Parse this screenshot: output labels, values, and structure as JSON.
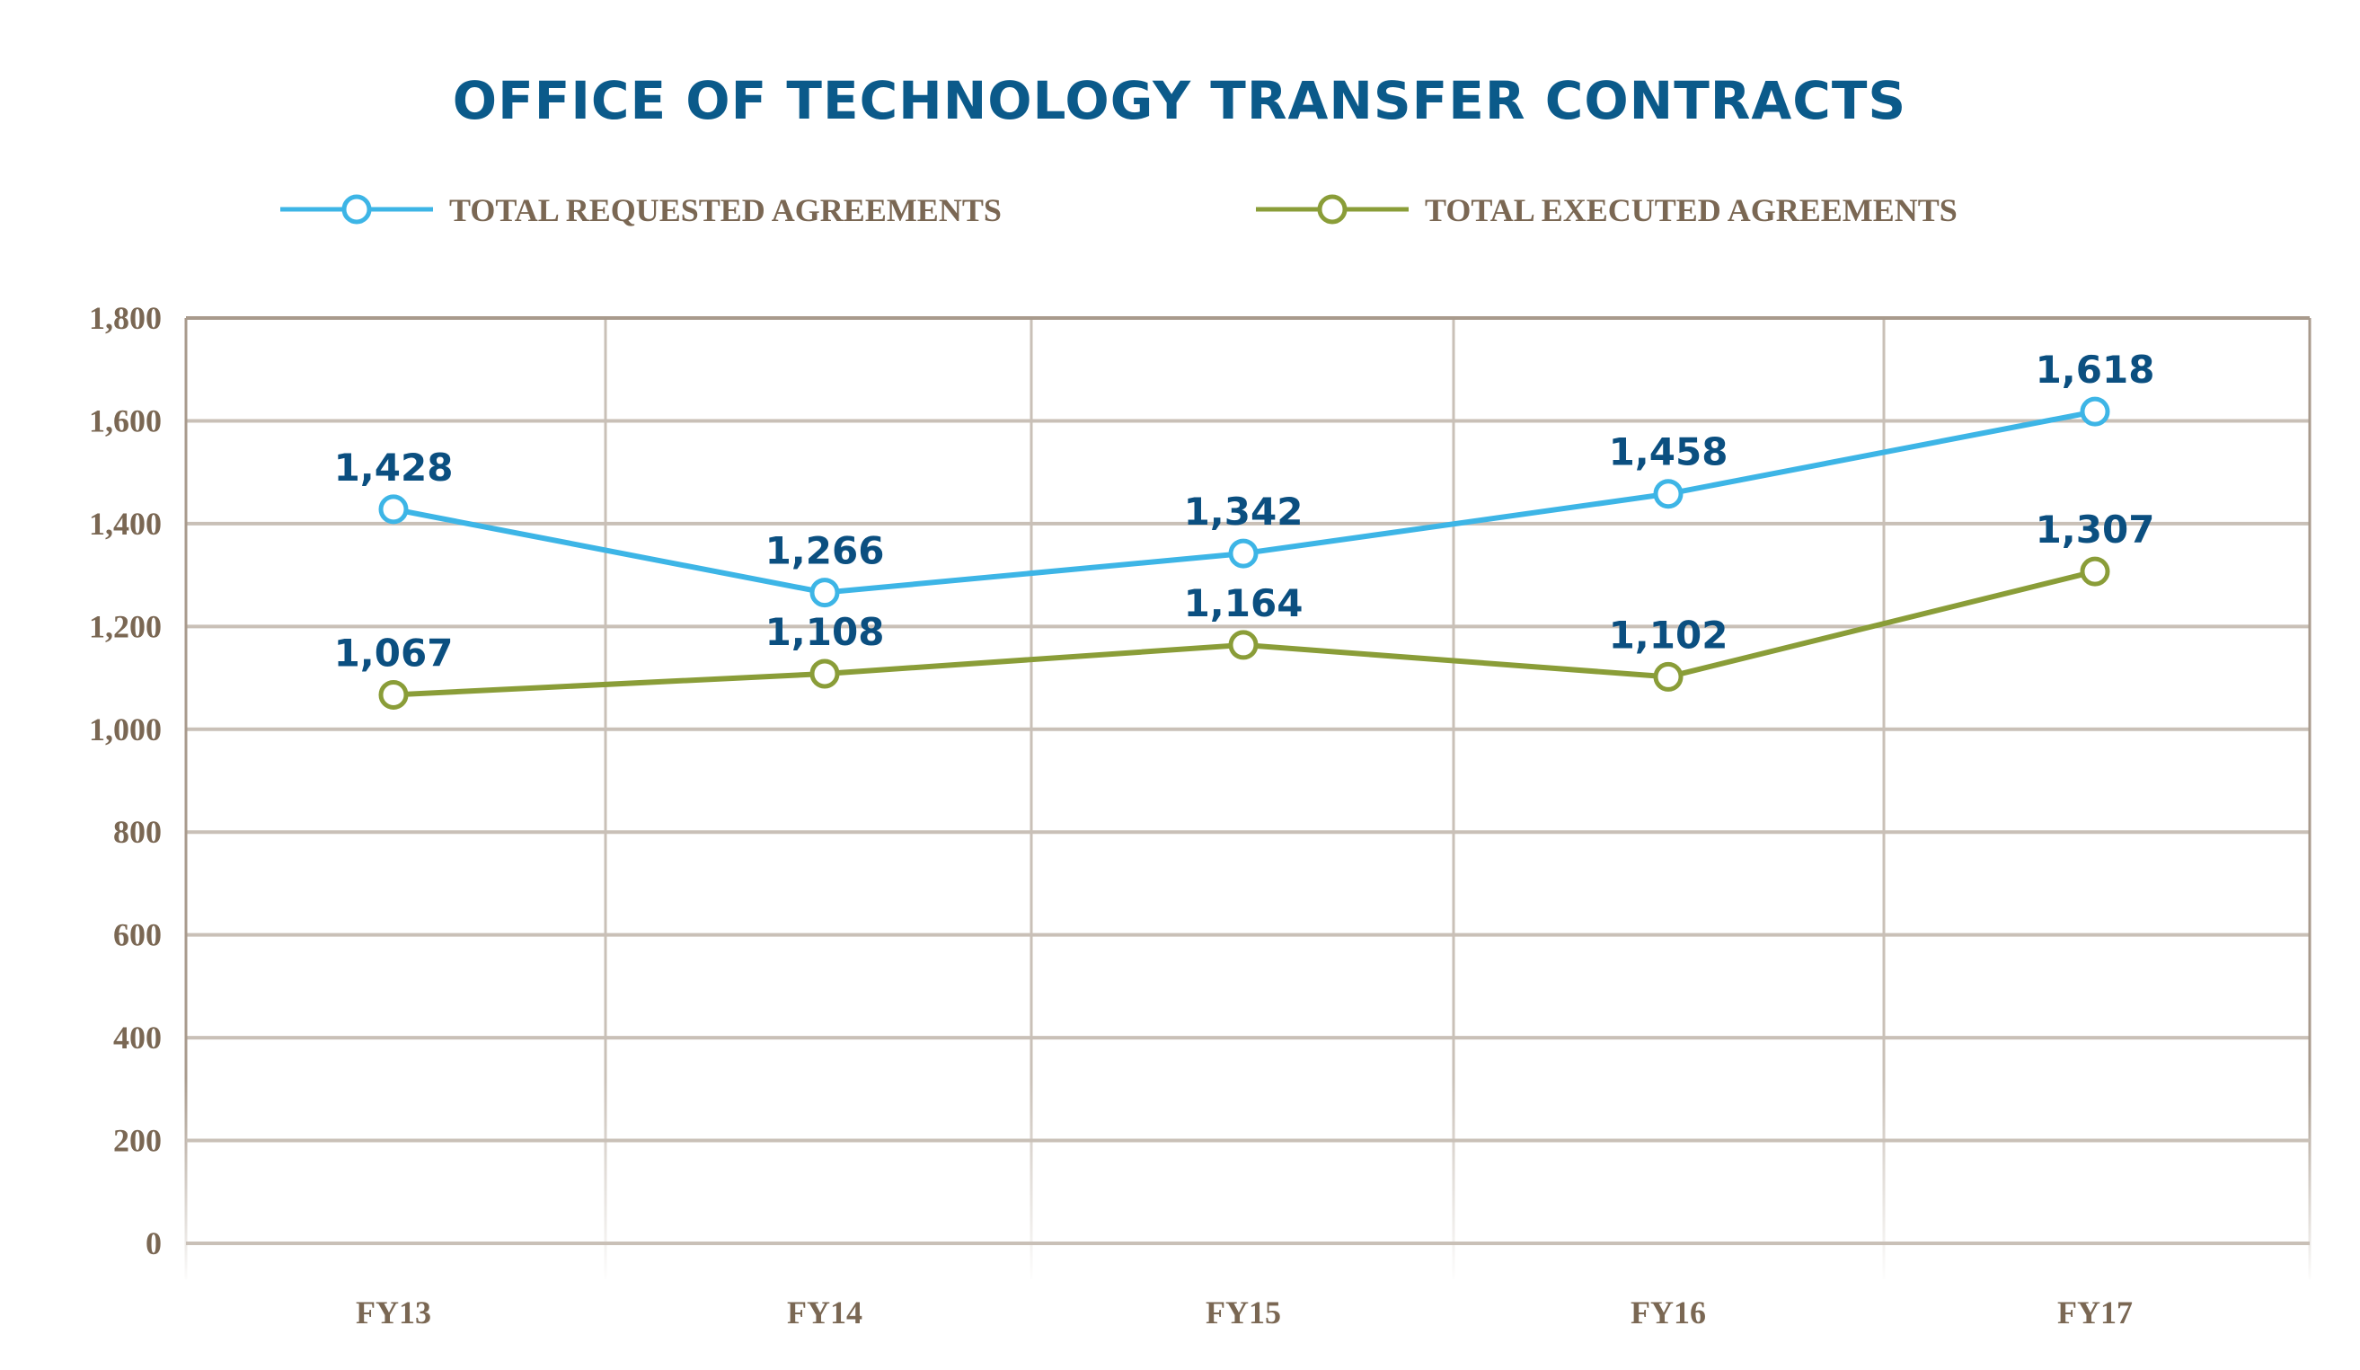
{
  "chart_data": {
    "type": "line",
    "title": "OFFICE OF TECHNOLOGY TRANSFER CONTRACTS",
    "categories": [
      "FY13",
      "FY14",
      "FY15",
      "FY16",
      "FY17"
    ],
    "series": [
      {
        "name": "TOTAL REQUESTED AGREEMENTS",
        "color": "#3db5e6",
        "values": [
          1428,
          1266,
          1342,
          1458,
          1618
        ],
        "labels": [
          "1,428",
          "1,266",
          "1,342",
          "1,458",
          "1,618"
        ]
      },
      {
        "name": "TOTAL EXECUTED AGREEMENTS",
        "color": "#8a9d38",
        "values": [
          1067,
          1108,
          1164,
          1102,
          1307
        ],
        "labels": [
          "1,067",
          "1,108",
          "1,164",
          "1,102",
          "1,307"
        ]
      }
    ],
    "yticks": [
      0,
      200,
      400,
      600,
      800,
      1000,
      1200,
      1400,
      1600,
      1800
    ],
    "ytick_labels": [
      "0",
      "200",
      "400",
      "600",
      "800",
      "1,000",
      "1,200",
      "1,400",
      "1,600",
      "1,800"
    ],
    "ylim": [
      0,
      1800
    ],
    "xlabel": "",
    "ylabel": "",
    "grid": true,
    "legend_position": "top",
    "colors": {
      "title": "#0b5a8a",
      "axis_text": "#7a6753",
      "data_label": "#0b4f80",
      "grid": "#c9c0b7",
      "axis": "#a89a8c"
    }
  }
}
